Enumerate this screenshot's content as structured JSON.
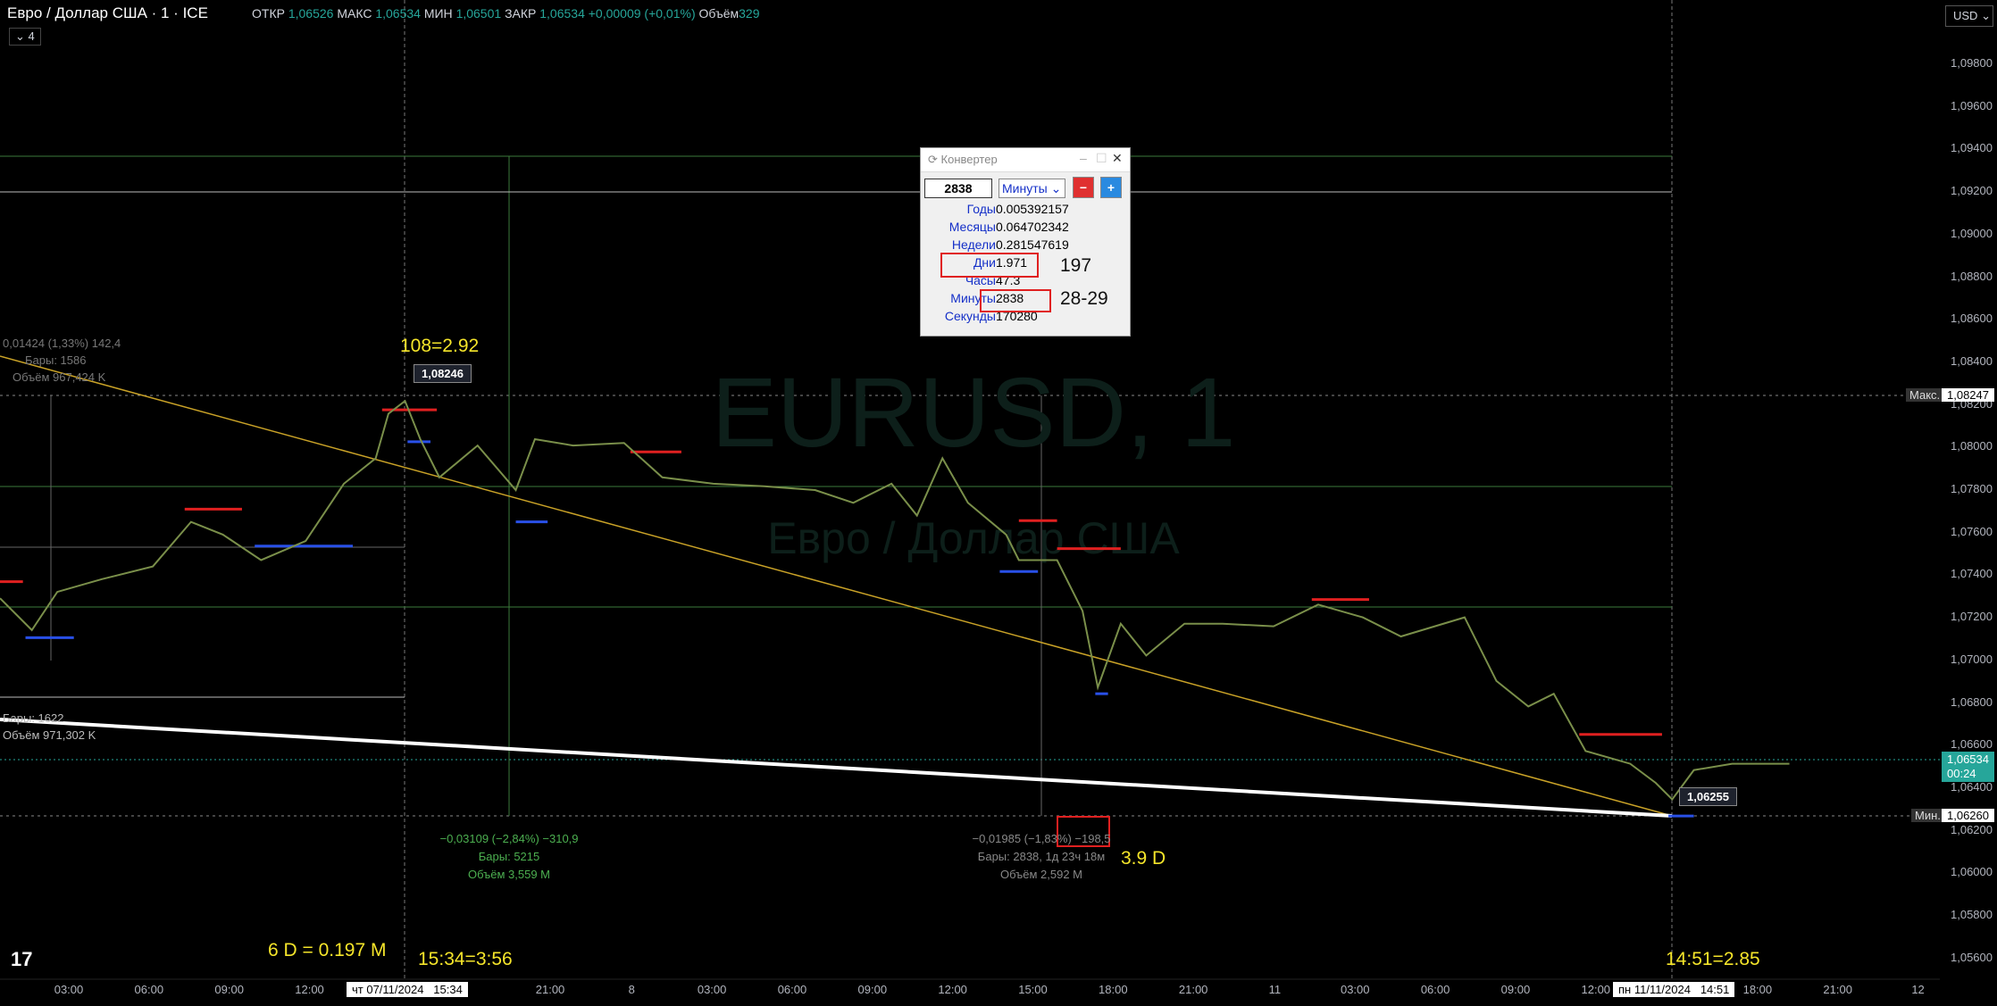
{
  "header": {
    "symbol": "Евро / Доллар США · 1 · ICE",
    "open_label": "ОТКР",
    "open": "1,06526",
    "high_label": "МАКС",
    "high": "1,06534",
    "low_label": "МИН",
    "low": "1,06501",
    "close_label": "ЗАКР",
    "close": "1,06534",
    "change": "+0,00009 (+0,01%)",
    "volume_label": "Объём",
    "volume": "329",
    "indicators_count": "4",
    "currency": "USD"
  },
  "watermark": {
    "symbol": "EURUSD, 1",
    "name": "Евро / Доллар США"
  },
  "price_axis": {
    "labels": [
      "1,09800",
      "1,09600",
      "1,09400",
      "1,09200",
      "1,09000",
      "1,08800",
      "1,08600",
      "1,08400",
      "1,08200",
      "1,08000",
      "1,07800",
      "1,07600",
      "1,07400",
      "1,07200",
      "1,07000",
      "1,06800",
      "1,06600",
      "1,06400",
      "1,06200",
      "1,06000",
      "1,05800",
      "1,05600"
    ],
    "max_label": "Макс.",
    "max": "1,08247",
    "min_label": "Мин.",
    "min": "1,06260",
    "last": "1,06534",
    "countdown": "00:24"
  },
  "time_axis": {
    "labels": [
      "03:00",
      "06:00",
      "09:00",
      "12:00",
      "21:00",
      "8",
      "03:00",
      "06:00",
      "09:00",
      "12:00",
      "15:00",
      "18:00",
      "21:00",
      "11",
      "03:00",
      "06:00",
      "09:00",
      "12:00",
      "18:00",
      "21:00",
      "12"
    ],
    "crosshair_left_date": "чт 07/11/2024",
    "crosshair_left_time": "15:34",
    "crosshair_right_date": "пн 11/11/2024",
    "crosshair_right_time": "14:51"
  },
  "measurements": [
    {
      "lines": [
        "0,01424 (1,33%) 142,4",
        "Бары: 1586",
        "Объём 967,424 K"
      ]
    },
    {
      "lines": [
        "Бары: 1622",
        "Объём 971,302 K"
      ]
    },
    {
      "lines": [
        "−0,03109 (−2,84%) −310,9",
        "Бары: 5215",
        "Объём 3,559 M"
      ]
    },
    {
      "lines": [
        "−0,01985 (−1,83%) −198,5",
        "Бары: 2838, 1д 23ч 18м",
        "Объём 2,592 M"
      ]
    }
  ],
  "price_tags": [
    "1,08246",
    "1,06255"
  ],
  "converter": {
    "title": "Конвертер",
    "input": "2838",
    "unit": "Минуты",
    "rows": [
      [
        "Годы",
        "0.005392157"
      ],
      [
        "Месяцы",
        "0.064702342"
      ],
      [
        "Недели",
        "0.281547619"
      ],
      [
        "Дни",
        "1.971"
      ],
      [
        "Часы",
        "47.3"
      ],
      [
        "Минуты",
        "2838"
      ],
      [
        "Секунды",
        "170280"
      ]
    ]
  },
  "annotations": {
    "days_note": "197",
    "minutes_note": "28-29",
    "left_peak": "108=2.92",
    "bottom_left": "6 D = 0.197 M",
    "left_time": "15:34=3:56",
    "middle_days": "3.9 D",
    "right_time": "14:51=2.85"
  }
}
